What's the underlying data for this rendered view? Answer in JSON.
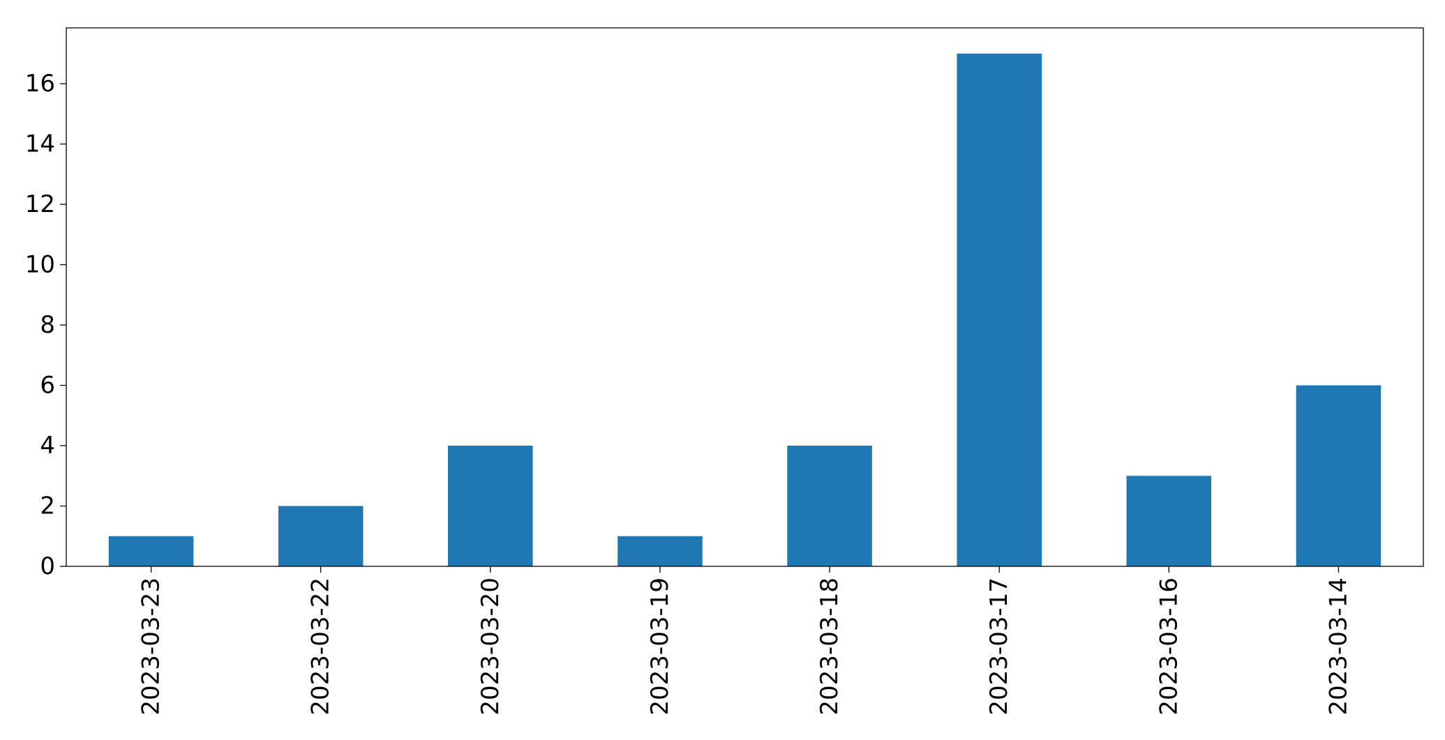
{
  "chart_data": {
    "type": "bar",
    "title": "",
    "xlabel": "",
    "ylabel": "",
    "categories": [
      "2023-03-23",
      "2023-03-22",
      "2023-03-20",
      "2023-03-19",
      "2023-03-18",
      "2023-03-17",
      "2023-03-16",
      "2023-03-14"
    ],
    "values": [
      1,
      2,
      4,
      1,
      4,
      17,
      3,
      6
    ],
    "ylim": [
      0,
      17.85
    ],
    "yticks": [
      0,
      2,
      4,
      6,
      8,
      10,
      12,
      14,
      16
    ],
    "grid": false,
    "legend": "none",
    "bar_color": "#1f77b4",
    "x_tick_rotation": "vertical"
  }
}
